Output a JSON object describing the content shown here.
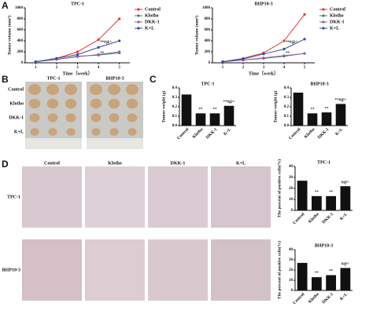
{
  "panel_labels": [
    "A",
    "B",
    "C",
    "D"
  ],
  "chart_data": [
    {
      "type": "line",
      "title": "TPC-1",
      "x_label": "Time（week）",
      "y_label": "Tumor volume (mm³)",
      "x": [
        1,
        2,
        3,
        4,
        5
      ],
      "xlim": [
        0.5,
        5.5
      ],
      "xticks": [
        1,
        2,
        3,
        4,
        5
      ],
      "ylim": [
        0,
        1000
      ],
      "yticks": [
        0,
        200,
        400,
        600,
        800,
        1000
      ],
      "legend": "right",
      "series": [
        {
          "name": "Control",
          "color": "#e8322f",
          "values": [
            20,
            80,
            200,
            420,
            800
          ]
        },
        {
          "name": "Klotho",
          "color": "#2e8b57",
          "values": [
            20,
            60,
            120,
            140,
            180
          ]
        },
        {
          "name": "DKK-1",
          "color": "#9b59b6",
          "values": [
            20,
            60,
            110,
            150,
            200
          ]
        },
        {
          "name": "K+L",
          "color": "#2c4fa3",
          "values": [
            20,
            80,
            150,
            280,
            400
          ]
        }
      ],
      "annotations": [
        "**#@^",
        "**"
      ]
    },
    {
      "type": "line",
      "title": "BHP10-3",
      "x_label": "Time（week）",
      "y_label": "Tumor volume (mm³)",
      "x": [
        1,
        2,
        3,
        4,
        5
      ],
      "xlim": [
        0.5,
        5.5
      ],
      "xticks": [
        1,
        2,
        3,
        4,
        5
      ],
      "ylim": [
        0,
        1000
      ],
      "yticks": [
        0,
        200,
        400,
        600,
        800,
        1000
      ],
      "legend": "right",
      "series": [
        {
          "name": "Control",
          "color": "#e8322f",
          "values": [
            20,
            80,
            180,
            400,
            880
          ]
        },
        {
          "name": "Klotho",
          "color": "#2e8b57",
          "values": [
            20,
            50,
            80,
            120,
            170
          ]
        },
        {
          "name": "DKK-1",
          "color": "#9b59b6",
          "values": [
            20,
            50,
            90,
            130,
            170
          ]
        },
        {
          "name": "K+L",
          "color": "#2c4fa3",
          "values": [
            20,
            70,
            160,
            250,
            430
          ]
        }
      ],
      "annotations": [
        "**#@^",
        "**"
      ]
    },
    {
      "type": "bar",
      "title": "TPC-1",
      "y_label": "Tumor weight (g)",
      "color": "#111111",
      "categories": [
        "Control",
        "Klotho",
        "DKK-1",
        "K+L"
      ],
      "values": [
        0.33,
        0.13,
        0.13,
        0.21
      ],
      "annotations": [
        "",
        "**",
        "**",
        "**#@^"
      ],
      "ylim": [
        0,
        0.4
      ],
      "yticks": [
        {
          "value": 0,
          "label": "0.0"
        },
        0.1,
        0.2,
        0.3,
        0.4
      ]
    },
    {
      "type": "bar",
      "title": "BHP10-3",
      "y_label": "Tumor weight (g)",
      "color": "#111111",
      "categories": [
        "Control",
        "Klotho",
        "DKK-1",
        "K+L"
      ],
      "values": [
        0.35,
        0.13,
        0.14,
        0.23
      ],
      "annotations": [
        "",
        "**",
        "**",
        "**#@^"
      ],
      "ylim": [
        0,
        0.4
      ],
      "yticks": [
        {
          "value": 0,
          "label": "0.0"
        },
        0.1,
        0.2,
        0.3,
        0.4
      ]
    },
    {
      "type": "bar",
      "title": "TPC-1",
      "y_label": "The percent of positive cells(%)",
      "color": "#111111",
      "categories": [
        "Control",
        "Klotho",
        "DKK-1",
        "K+L"
      ],
      "values": [
        27,
        13,
        13,
        22
      ],
      "annotations": [
        "",
        "**",
        "**",
        "#@^"
      ],
      "ylim": [
        0,
        40
      ],
      "yticks": [
        0,
        10,
        20,
        30,
        40
      ]
    },
    {
      "type": "bar",
      "title": "BHP10-3",
      "y_label": "The percent of positive cells(%)",
      "color": "#111111",
      "categories": [
        "Control",
        "Klotho",
        "DKK-1",
        "K+L"
      ],
      "values": [
        27,
        13,
        15,
        22
      ],
      "annotations": [
        "",
        "**",
        "**",
        "#@^"
      ],
      "ylim": [
        0,
        40
      ],
      "yticks": [
        0,
        10,
        20,
        30,
        40
      ]
    }
  ],
  "photo_panel_b": {
    "columns": [
      "TPC-1",
      "BHP10-3"
    ],
    "rows": [
      "Control",
      "Klotho",
      "DKK-1",
      "K+L"
    ]
  },
  "photo_panel_d": {
    "columns": [
      "Control",
      "Klotho",
      "DKK-1",
      "K+L"
    ],
    "rows": [
      "TPC-1",
      "BHP10-3"
    ]
  }
}
